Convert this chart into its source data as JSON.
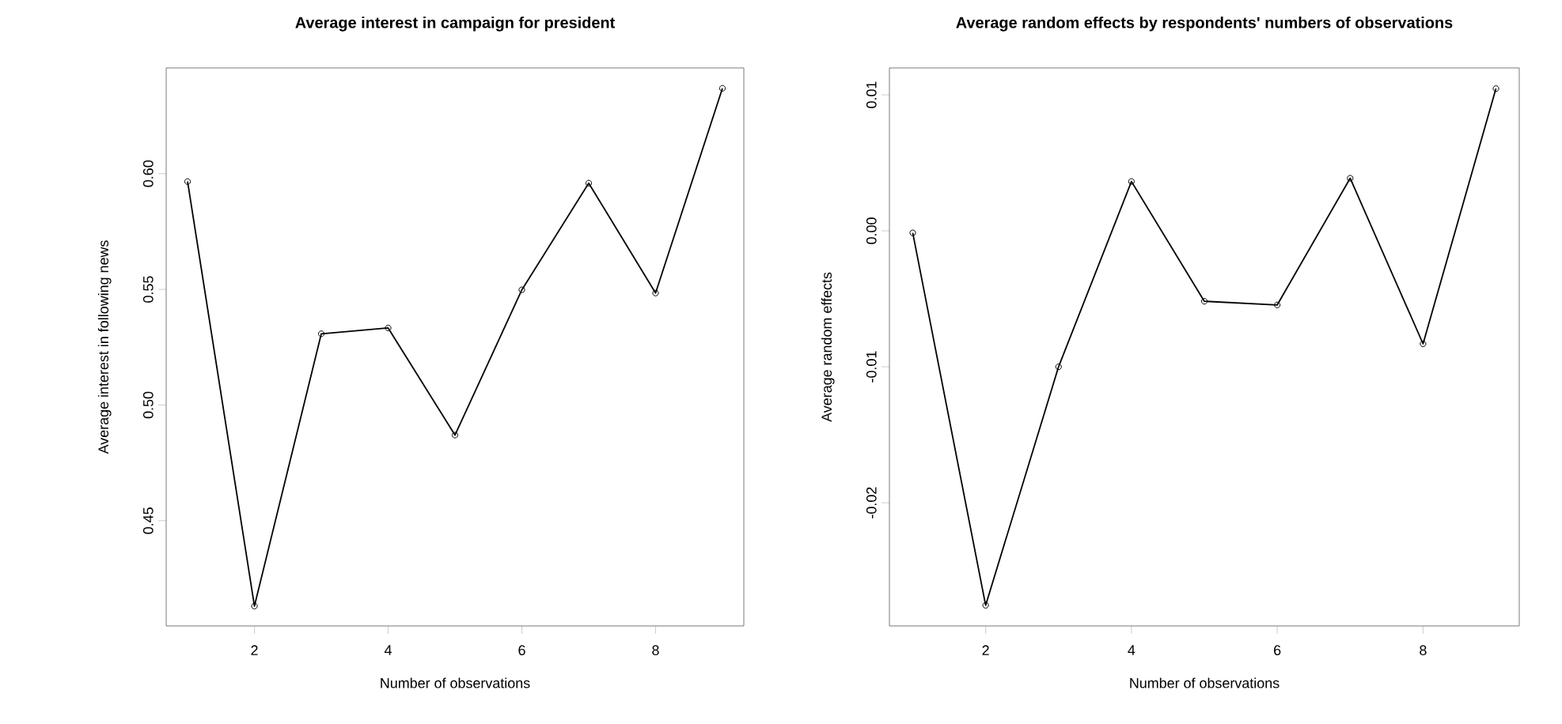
{
  "chart_data": [
    {
      "type": "line",
      "title": "Average interest in campaign for president",
      "xlabel": "Number of observations",
      "ylabel": "Average interest in following news",
      "x": [
        1,
        2,
        3,
        4,
        5,
        6,
        7,
        8,
        9
      ],
      "values": [
        0.5966,
        0.4131,
        0.5308,
        0.5333,
        0.487,
        0.5498,
        0.5959,
        0.5484,
        0.6369
      ],
      "color": "#000000",
      "marker": "circle",
      "line_style": "solid",
      "xlim": [
        0.68,
        9.32
      ],
      "ylim": [
        0.4045,
        0.6457
      ],
      "xticks": [
        2,
        4,
        6,
        8
      ],
      "yticks": [
        {
          "value": 0.45,
          "label": "0.45"
        },
        {
          "value": 0.5,
          "label": "0.50"
        },
        {
          "value": 0.55,
          "label": "0.55"
        },
        {
          "value": 0.6,
          "label": "0.60"
        }
      ]
    },
    {
      "type": "line",
      "title": "Average random effects by respondents' numbers of observations",
      "xlabel": "Number of observations",
      "ylabel": "Average random effects",
      "x": [
        1,
        2,
        3,
        4,
        5,
        6,
        7,
        8,
        9
      ],
      "values": [
        -0.00015,
        -0.02754,
        -0.01,
        0.00363,
        -0.00518,
        -0.00545,
        0.00387,
        -0.00831,
        0.01046
      ],
      "color": "#000000",
      "marker": "circle",
      "line_style": "solid",
      "xlim": [
        0.68,
        9.32
      ],
      "ylim": [
        -0.02906,
        0.01198
      ],
      "xticks": [
        2,
        4,
        6,
        8
      ],
      "yticks": [
        {
          "value": -0.02,
          "label": "-0.02"
        },
        {
          "value": -0.01,
          "label": "-0.01"
        },
        {
          "value": 0,
          "label": "0.00"
        },
        {
          "value": 0.01,
          "label": "0.01"
        }
      ]
    }
  ]
}
